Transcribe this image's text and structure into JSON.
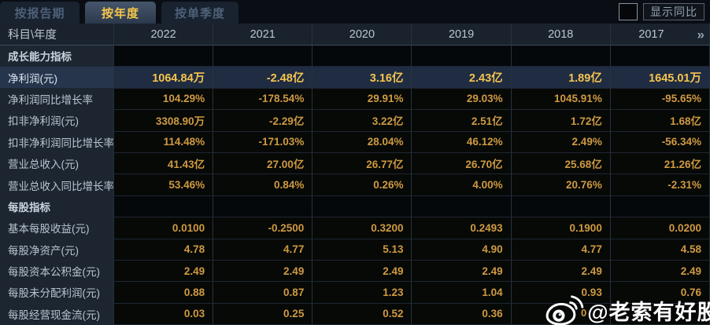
{
  "tabs": [
    {
      "label": "按报告期",
      "active": false
    },
    {
      "label": "按年度",
      "active": true
    },
    {
      "label": "按单季度",
      "active": false
    }
  ],
  "controls": {
    "yoy_checkbox_checked": false,
    "yoy_label": "显示同比"
  },
  "table": {
    "corner_label": "科目\\年度",
    "years": [
      "2022",
      "2021",
      "2020",
      "2019",
      "2018",
      "2017"
    ],
    "more_icon": "»",
    "rows": [
      {
        "type": "section",
        "label": "成长能力指标",
        "values": [
          "",
          "",
          "",
          "",
          "",
          ""
        ]
      },
      {
        "type": "data",
        "highlighted": true,
        "label": "净利润(元)",
        "values": [
          "1064.84万",
          "-2.48亿",
          "3.16亿",
          "2.43亿",
          "1.89亿",
          "1645.01万"
        ]
      },
      {
        "type": "data",
        "label": "净利润同比增长率",
        "values": [
          "104.29%",
          "-178.54%",
          "29.91%",
          "29.03%",
          "1045.91%",
          "-95.65%"
        ]
      },
      {
        "type": "data",
        "label": "扣非净利润(元)",
        "values": [
          "3308.90万",
          "-2.29亿",
          "3.22亿",
          "2.51亿",
          "1.72亿",
          "1.68亿"
        ]
      },
      {
        "type": "data",
        "label": "扣非净利润同比增长率",
        "values": [
          "114.48%",
          "-171.03%",
          "28.04%",
          "46.12%",
          "2.49%",
          "-56.34%"
        ]
      },
      {
        "type": "data",
        "label": "营业总收入(元)",
        "values": [
          "41.43亿",
          "27.00亿",
          "26.77亿",
          "26.70亿",
          "25.68亿",
          "21.26亿"
        ]
      },
      {
        "type": "data",
        "label": "营业总收入同比增长率",
        "values": [
          "53.46%",
          "0.84%",
          "0.26%",
          "4.00%",
          "20.76%",
          "-2.31%"
        ]
      },
      {
        "type": "section",
        "label": "每股指标",
        "values": [
          "",
          "",
          "",
          "",
          "",
          ""
        ]
      },
      {
        "type": "data",
        "label": "基本每股收益(元)",
        "values": [
          "0.0100",
          "-0.2500",
          "0.3200",
          "0.2493",
          "0.1900",
          "0.0200"
        ]
      },
      {
        "type": "data",
        "label": "每股净资产(元)",
        "values": [
          "4.78",
          "4.77",
          "5.13",
          "4.90",
          "4.77",
          "4.58"
        ]
      },
      {
        "type": "data",
        "label": "每股资本公积金(元)",
        "values": [
          "2.49",
          "2.49",
          "2.49",
          "2.49",
          "2.49",
          "2.49"
        ]
      },
      {
        "type": "data",
        "label": "每股未分配利润(元)",
        "values": [
          "0.88",
          "0.87",
          "1.23",
          "1.04",
          "0.93",
          "0.76"
        ]
      },
      {
        "type": "data",
        "label": "每股经营现金流(元)",
        "values": [
          "0.03",
          "0.25",
          "0.52",
          "0.36",
          "",
          ""
        ]
      }
    ]
  },
  "watermark": {
    "icon": "weibo-icon",
    "obscured_fragment": "0",
    "handle": "@老索有好股"
  },
  "colors": {
    "page_bg": "#0a0e14",
    "tab_active_text": "#f6c64a",
    "tab_inactive_text": "#4e6078",
    "header_bg": "#1a222d",
    "label_cell_bg": "#1c2530",
    "value_cell_bg": "#070907",
    "value_text": "#cf9a41",
    "highlight_row_bg": "#1f2c42",
    "highlight_value_text": "#f6c44e",
    "grid_border": "#27313f",
    "watermark_text": "#ffffff"
  }
}
